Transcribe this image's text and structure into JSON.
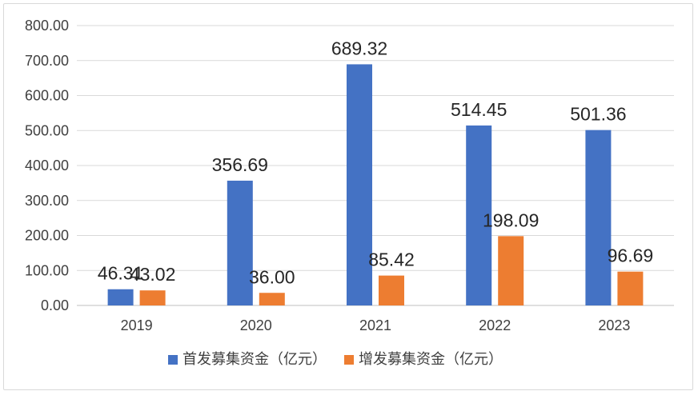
{
  "chart_data": {
    "type": "bar",
    "title": "",
    "xlabel": "",
    "ylabel": "",
    "categories": [
      "2019",
      "2020",
      "2021",
      "2022",
      "2023"
    ],
    "series": [
      {
        "name": "首发募集资金（亿元）",
        "values": [
          46.31,
          356.69,
          689.32,
          514.45,
          501.36
        ],
        "color": "#4472c4"
      },
      {
        "name": "增发募集资金（亿元）",
        "values": [
          43.02,
          36.0,
          85.42,
          198.09,
          96.69
        ],
        "color": "#ed7d31"
      }
    ],
    "value_labels": [
      [
        "46.31",
        "356.69",
        "689.32",
        "514.45",
        "501.36"
      ],
      [
        "43.02",
        "36.00",
        "85.42",
        "198.09",
        "96.69"
      ]
    ],
    "ylim": [
      0,
      800
    ],
    "yticks": [
      "0.00",
      "100.00",
      "200.00",
      "300.00",
      "400.00",
      "500.00",
      "600.00",
      "700.00",
      "800.00"
    ],
    "grid": true,
    "legend_position": "bottom"
  }
}
